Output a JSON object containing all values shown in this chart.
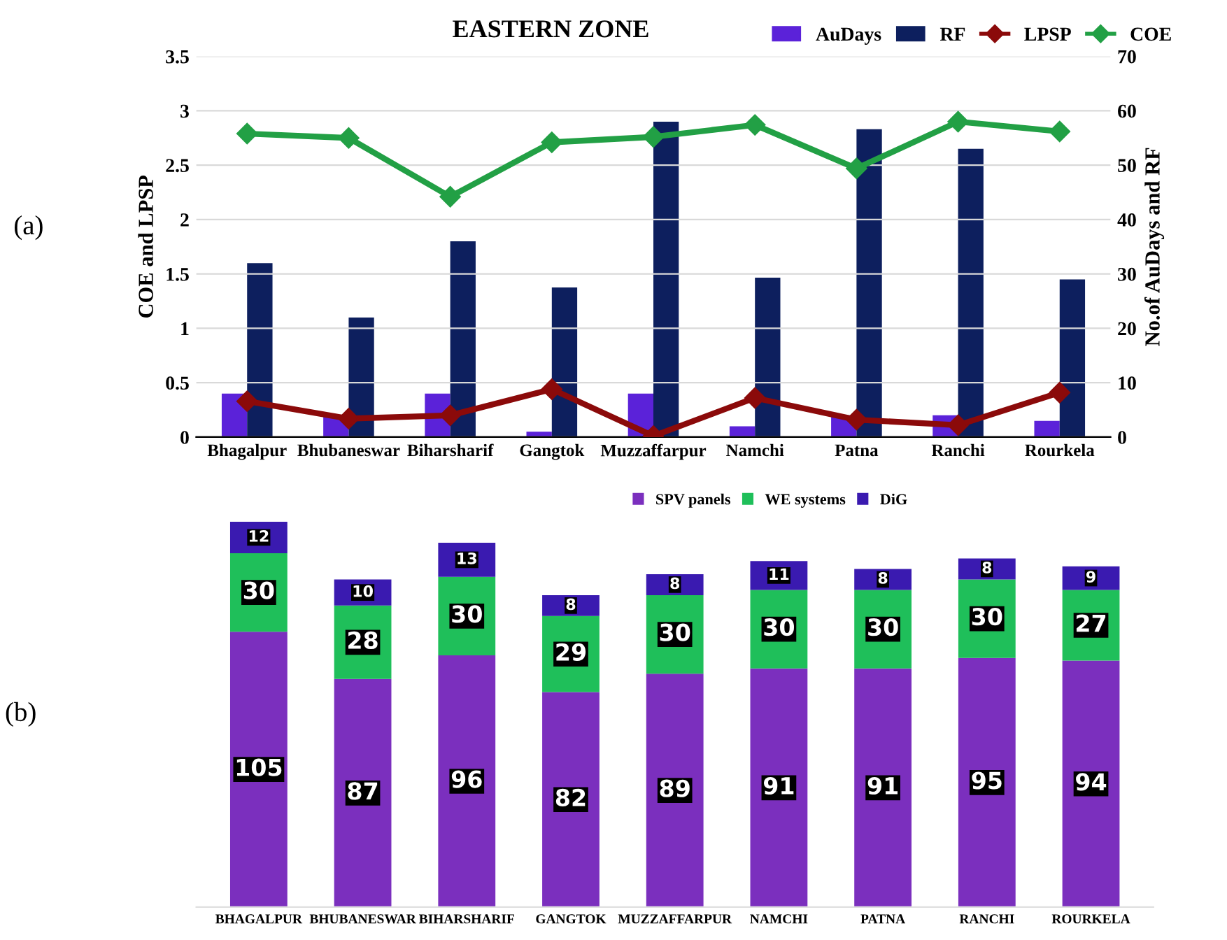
{
  "chart_data": [
    {
      "type": "bar",
      "title": "EASTERN ZONE",
      "ylabel": "COE and LPSP",
      "y2label": "No.of AuDays and RF",
      "annotations": [
        "(a)"
      ],
      "categories": [
        "Bhagalpur",
        "Bhubaneswar",
        "Biharsharif",
        "Gangtok",
        "Muzzaffarpur",
        "Namchi",
        "Patna",
        "Ranchi",
        "Rourkela"
      ],
      "series": [
        {
          "name": "AuDays",
          "axis": "y2",
          "color": "#5b22d9",
          "values": [
            8,
            4,
            8,
            1,
            8,
            2,
            4,
            4,
            3
          ]
        },
        {
          "name": "RF",
          "axis": "y2",
          "color": "#0d1f5e",
          "values": [
            32,
            22,
            36,
            27.5,
            58,
            29.3,
            56.6,
            53,
            29
          ]
        },
        {
          "name": "LPSP",
          "type": "line",
          "color": "#8b0a0a",
          "values": [
            0.33,
            0.17,
            0.2,
            0.44,
            0.01,
            0.36,
            0.16,
            0.11,
            0.41
          ]
        },
        {
          "name": "COE",
          "type": "line",
          "color": "#22a045",
          "values": [
            2.79,
            2.75,
            2.21,
            2.71,
            2.76,
            2.87,
            2.47,
            2.9,
            2.81
          ]
        }
      ],
      "ylim": [
        0,
        3.5
      ],
      "yticks": [
        0,
        0.5,
        1,
        1.5,
        2,
        2.5,
        3,
        3.5
      ],
      "y2lim": [
        0,
        70
      ],
      "y2ticks": [
        0,
        10,
        20,
        30,
        40,
        50,
        60,
        70
      ],
      "grid": "y",
      "legend": "top right",
      "marker": "diamond"
    },
    {
      "type": "bar",
      "stacked": true,
      "data_labels": true,
      "legend": "top",
      "annotations": [
        "(b)"
      ],
      "categories": [
        "BHAGALPUR",
        "BHUBANESWAR",
        "BIHARSHARIF",
        "GANGTOK",
        "MUZZAFFARPUR",
        "NAMCHI",
        "PATNA",
        "RANCHI",
        "ROURKELA"
      ],
      "series": [
        {
          "name": "SPV panels",
          "color": "#7b2fbe",
          "values": [
            105,
            87,
            96,
            82,
            89,
            91,
            91,
            95,
            94
          ]
        },
        {
          "name": "WE systems",
          "color": "#1fbf5a",
          "values": [
            30,
            28,
            30,
            29,
            30,
            30,
            30,
            30,
            27
          ]
        },
        {
          "name": "DiG",
          "color": "#3a1ab0",
          "values": [
            12,
            10,
            13,
            8,
            8,
            11,
            8,
            8,
            9
          ]
        }
      ]
    }
  ]
}
